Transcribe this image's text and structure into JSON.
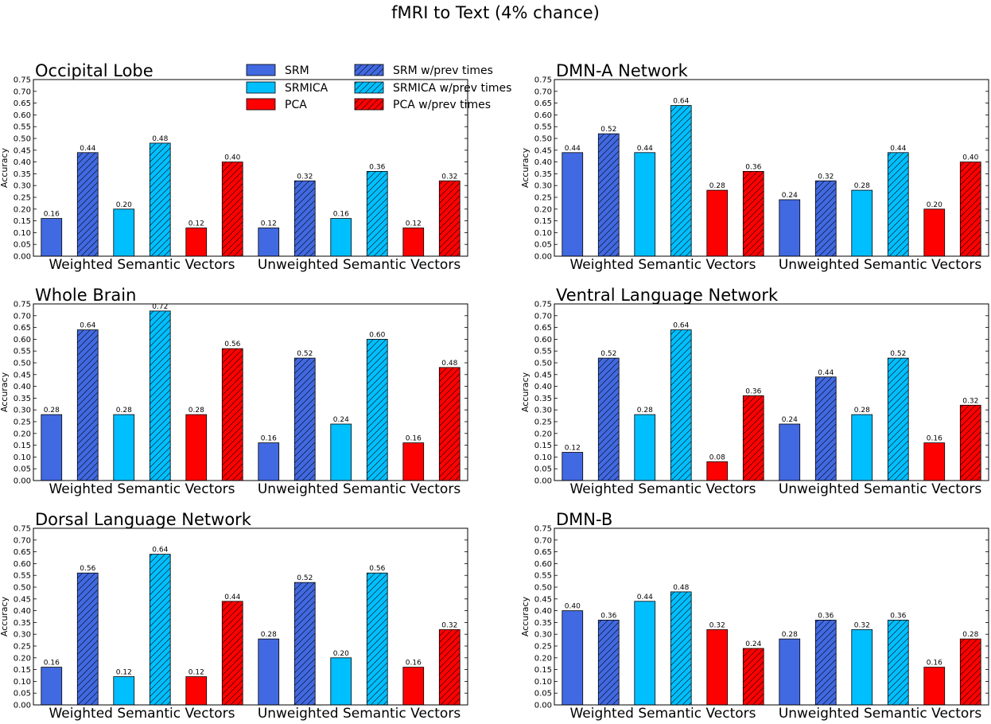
{
  "figure_title": "fMRI to Text (4% chance)",
  "chart_data": [
    {
      "type": "bar",
      "title": "Occipital Lobe",
      "ylabel": "Accuracy",
      "ylim": [
        0,
        0.75
      ],
      "group_labels": [
        "Weighted Semantic Vectors",
        "Unweighted Semantic Vectors"
      ],
      "series": [
        {
          "name": "SRM",
          "values": [
            0.16,
            0.12
          ]
        },
        {
          "name": "SRM w/prev times",
          "values": [
            0.44,
            0.32
          ]
        },
        {
          "name": "SRMICA",
          "values": [
            0.2,
            0.16
          ]
        },
        {
          "name": "SRMICA w/prev times",
          "values": [
            0.48,
            0.36
          ]
        },
        {
          "name": "PCA",
          "values": [
            0.12,
            0.12
          ]
        },
        {
          "name": "PCA w/prev times",
          "values": [
            0.4,
            0.32
          ]
        }
      ],
      "bar_labels": [
        [
          "0.16",
          "0.44",
          "0.20",
          "0.48",
          "0.12",
          "0.40"
        ],
        [
          "0.12",
          "0.32",
          "0.16",
          "0.36",
          "0.12",
          "0.32"
        ]
      ]
    },
    {
      "type": "bar",
      "title": "DMN-A Network",
      "ylabel": "Accuracy",
      "ylim": [
        0,
        0.75
      ],
      "group_labels": [
        "Weighted Semantic Vectors",
        "Unweighted Semantic Vectors"
      ],
      "series": [
        {
          "name": "SRM",
          "values": [
            0.44,
            0.24
          ]
        },
        {
          "name": "SRM w/prev times",
          "values": [
            0.52,
            0.32
          ]
        },
        {
          "name": "SRMICA",
          "values": [
            0.44,
            0.28
          ]
        },
        {
          "name": "SRMICA w/prev times",
          "values": [
            0.64,
            0.44
          ]
        },
        {
          "name": "PCA",
          "values": [
            0.28,
            0.2
          ]
        },
        {
          "name": "PCA w/prev times",
          "values": [
            0.36,
            0.4
          ]
        }
      ],
      "bar_labels": [
        [
          "0.44",
          "0.52",
          "0.44",
          "0.64",
          "0.28",
          "0.36"
        ],
        [
          "0.24",
          "0.32",
          "0.28",
          "0.44",
          "0.20",
          "0.40"
        ]
      ]
    },
    {
      "type": "bar",
      "title": "Whole Brain",
      "ylabel": "Accuracy",
      "ylim": [
        0,
        0.75
      ],
      "group_labels": [
        "Weighted Semantic Vectors",
        "Unweighted Semantic Vectors"
      ],
      "series": [
        {
          "name": "SRM",
          "values": [
            0.28,
            0.16
          ]
        },
        {
          "name": "SRM w/prev times",
          "values": [
            0.64,
            0.52
          ]
        },
        {
          "name": "SRMICA",
          "values": [
            0.28,
            0.24
          ]
        },
        {
          "name": "SRMICA w/prev times",
          "values": [
            0.72,
            0.6
          ]
        },
        {
          "name": "PCA",
          "values": [
            0.28,
            0.16
          ]
        },
        {
          "name": "PCA w/prev times",
          "values": [
            0.56,
            0.48
          ]
        }
      ],
      "bar_labels": [
        [
          "0.28",
          "0.64",
          "0.28",
          "0.72",
          "0.28",
          "0.56"
        ],
        [
          "0.16",
          "0.52",
          "0.24",
          "0.60",
          "0.16",
          "0.48"
        ]
      ]
    },
    {
      "type": "bar",
      "title": "Ventral Language Network",
      "ylabel": "Accuracy",
      "ylim": [
        0,
        0.75
      ],
      "group_labels": [
        "Weighted Semantic Vectors",
        "Unweighted Semantic Vectors"
      ],
      "series": [
        {
          "name": "SRM",
          "values": [
            0.12,
            0.24
          ]
        },
        {
          "name": "SRM w/prev times",
          "values": [
            0.52,
            0.44
          ]
        },
        {
          "name": "SRMICA",
          "values": [
            0.28,
            0.28
          ]
        },
        {
          "name": "SRMICA w/prev times",
          "values": [
            0.64,
            0.52
          ]
        },
        {
          "name": "PCA",
          "values": [
            0.08,
            0.16
          ]
        },
        {
          "name": "PCA w/prev times",
          "values": [
            0.36,
            0.32
          ]
        }
      ],
      "bar_labels": [
        [
          "0.12",
          "0.52",
          "0.28",
          "0.64",
          "0.08",
          "0.36"
        ],
        [
          "0.24",
          "0.44",
          "0.28",
          "0.52",
          "0.16",
          "0.32"
        ]
      ]
    },
    {
      "type": "bar",
      "title": "Dorsal Language Network",
      "ylabel": "Accuracy",
      "ylim": [
        0,
        0.75
      ],
      "group_labels": [
        "Weighted Semantic Vectors",
        "Unweighted Semantic Vectors"
      ],
      "series": [
        {
          "name": "SRM",
          "values": [
            0.16,
            0.28
          ]
        },
        {
          "name": "SRM w/prev times",
          "values": [
            0.56,
            0.52
          ]
        },
        {
          "name": "SRMICA",
          "values": [
            0.12,
            0.2
          ]
        },
        {
          "name": "SRMICA w/prev times",
          "values": [
            0.64,
            0.56
          ]
        },
        {
          "name": "PCA",
          "values": [
            0.12,
            0.16
          ]
        },
        {
          "name": "PCA w/prev times",
          "values": [
            0.44,
            0.32
          ]
        }
      ],
      "bar_labels": [
        [
          "0.16",
          "0.56",
          "0.12",
          "0.64",
          "0.12",
          "0.44"
        ],
        [
          "0.28",
          "0.52",
          "0.20",
          "0.56",
          "0.16",
          "0.32"
        ]
      ]
    },
    {
      "type": "bar",
      "title": "DMN-B",
      "ylabel": "Accuracy",
      "ylim": [
        0,
        0.75
      ],
      "group_labels": [
        "Weighted Semantic Vectors",
        "Unweighted Semantic Vectors"
      ],
      "series": [
        {
          "name": "SRM",
          "values": [
            0.4,
            0.28
          ]
        },
        {
          "name": "SRM w/prev times",
          "values": [
            0.36,
            0.36
          ]
        },
        {
          "name": "SRMICA",
          "values": [
            0.44,
            0.32
          ]
        },
        {
          "name": "SRMICA w/prev times",
          "values": [
            0.48,
            0.36
          ]
        },
        {
          "name": "PCA",
          "values": [
            0.32,
            0.16
          ]
        },
        {
          "name": "PCA w/prev times",
          "values": [
            0.24,
            0.28
          ]
        }
      ],
      "bar_labels": [
        [
          "0.40",
          "0.36",
          "0.44",
          "0.48",
          "0.32",
          "0.24"
        ],
        [
          "0.28",
          "0.36",
          "0.32",
          "0.36",
          "0.16",
          "0.28"
        ]
      ]
    }
  ],
  "yticks": [
    "0.00",
    "0.05",
    "0.10",
    "0.15",
    "0.20",
    "0.25",
    "0.30",
    "0.35",
    "0.40",
    "0.45",
    "0.50",
    "0.55",
    "0.60",
    "0.65",
    "0.70",
    "0.75"
  ],
  "legend": {
    "placement": "top, inside Occipital Lobe panel",
    "entries": [
      {
        "label": "SRM",
        "color": "#4169e1",
        "hatched": false
      },
      {
        "label": "SRMICA",
        "color": "#00bfff",
        "hatched": false
      },
      {
        "label": "PCA",
        "color": "#ff0000",
        "hatched": false
      },
      {
        "label": "SRM w/prev times",
        "color": "#4169e1",
        "hatched": true
      },
      {
        "label": "SRMICA w/prev times",
        "color": "#00bfff",
        "hatched": true
      },
      {
        "label": "PCA w/prev times",
        "color": "#ff0000",
        "hatched": true
      }
    ]
  },
  "colors": {
    "SRM": "#4169e1",
    "SRMICA": "#00bfff",
    "PCA": "#ff0000"
  }
}
